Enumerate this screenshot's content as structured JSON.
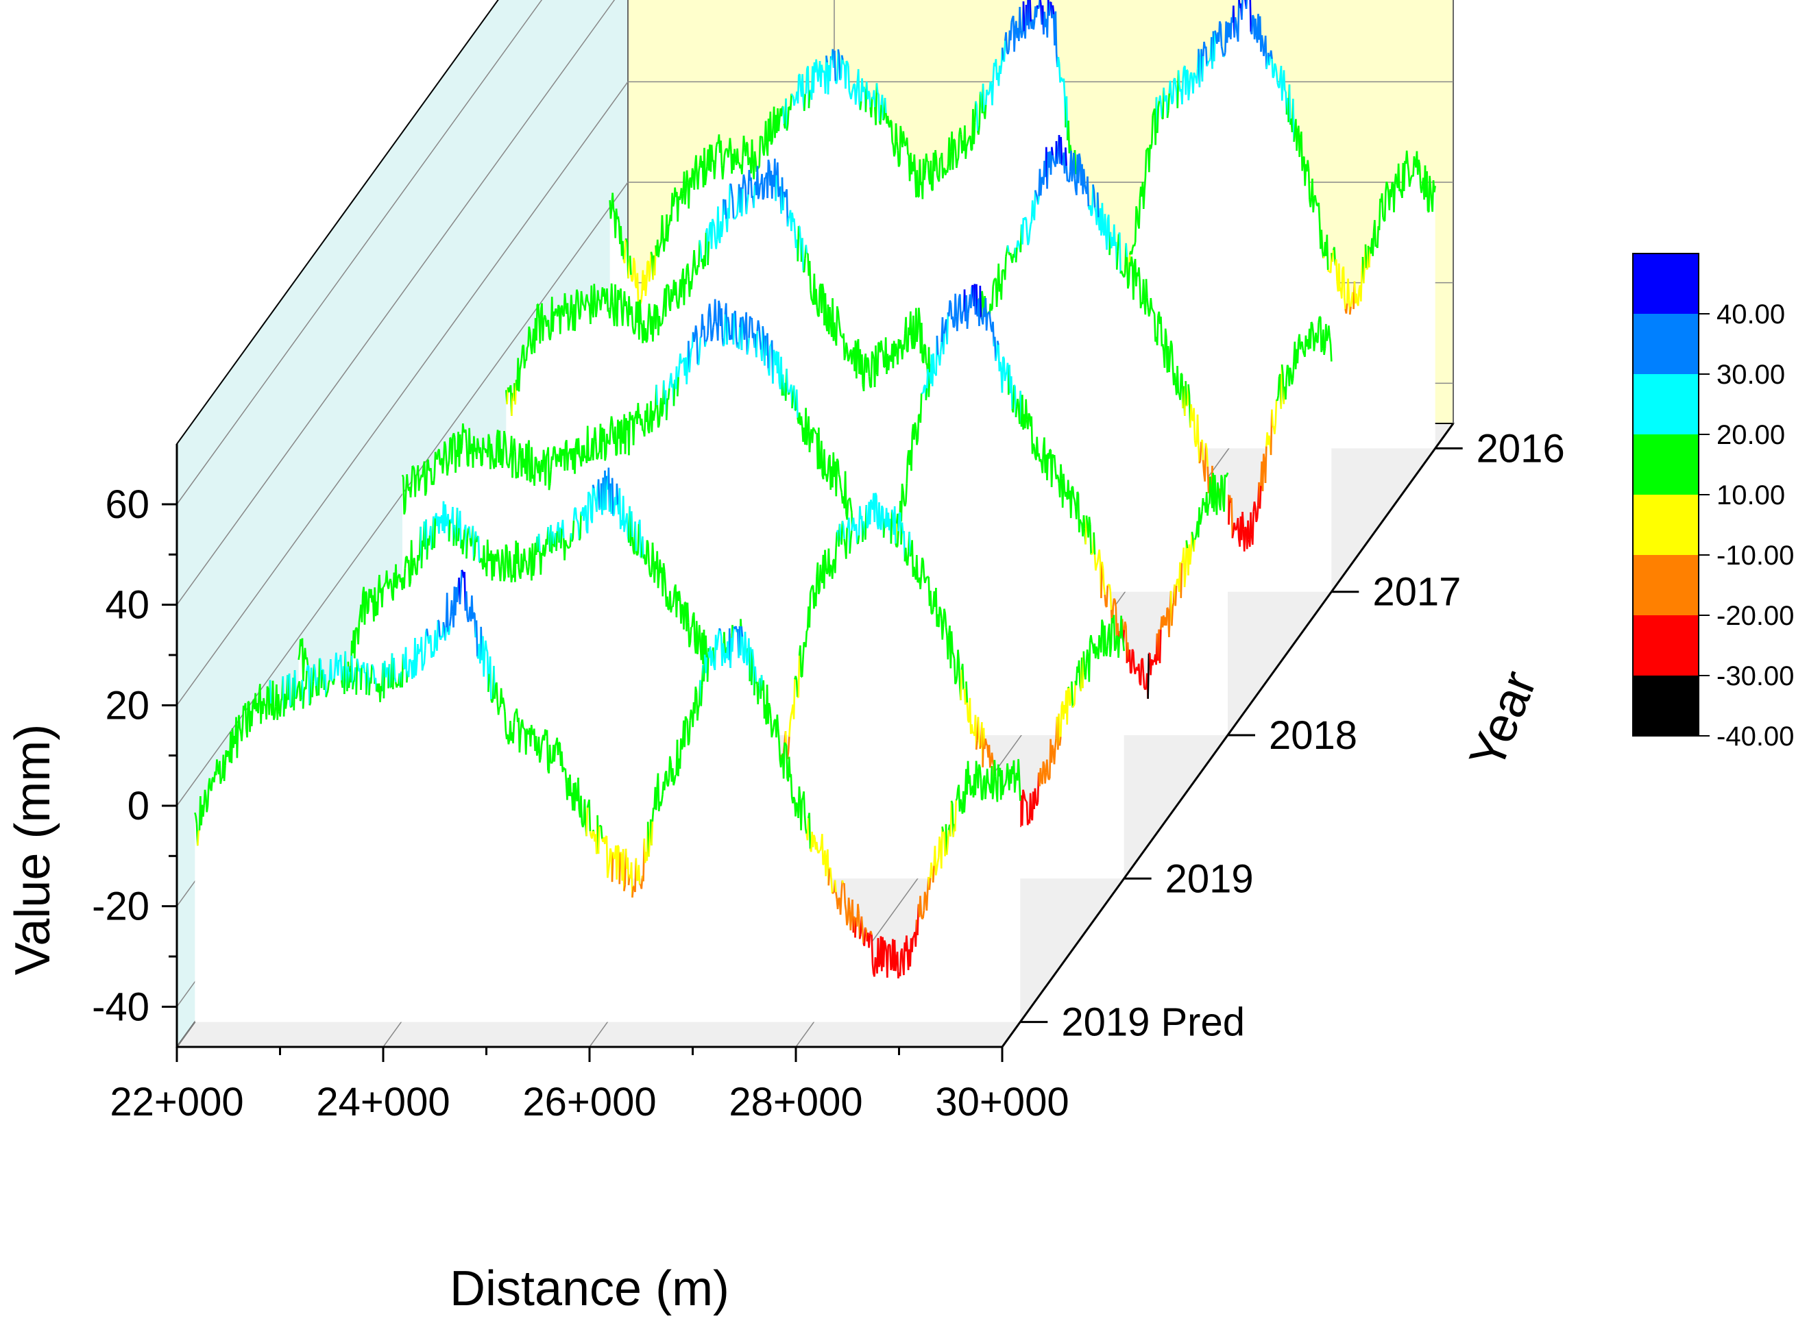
{
  "chart_data": {
    "type": "line",
    "subtype": "3d-waterfall",
    "xlabel": "Distance (m)",
    "ylabel": "Value (mm)",
    "zlabel": "Year",
    "x_ticks": [
      "22+000",
      "24+000",
      "26+000",
      "28+000",
      "30+000"
    ],
    "x_tick_values": [
      22000,
      24000,
      26000,
      28000,
      30000
    ],
    "xlim": [
      22000,
      30000
    ],
    "y_ticks": [
      "60",
      "40",
      "20",
      "0",
      "-20",
      "-40"
    ],
    "y_tick_values": [
      60,
      40,
      20,
      0,
      -20,
      -40
    ],
    "ylim": [
      -48,
      72
    ],
    "z_categories": [
      "2016",
      "2017",
      "2018",
      "2019",
      "2019 Pred"
    ],
    "grid": true,
    "colorbar": {
      "labels": [
        "40.00",
        "30.00",
        "20.00",
        "10.00",
        "-10.00",
        "-20.00",
        "-30.00",
        "-40.00"
      ],
      "bands": [
        {
          "min": 40,
          "color": "#0000ff"
        },
        {
          "min": 30,
          "color": "#0080ff"
        },
        {
          "min": 20,
          "color": "#00ffff"
        },
        {
          "min": -10,
          "color": "#00ff00"
        },
        {
          "min": -20,
          "color": "#ffff00"
        },
        {
          "min": -30,
          "color": "#ff8000"
        },
        {
          "min": -40,
          "color": "#ff0000"
        },
        {
          "min": -1000,
          "color": "#000000"
        }
      ]
    },
    "series": [
      {
        "name": "2016",
        "x": [
          22000,
          22300,
          22600,
          23000,
          23400,
          23800,
          24200,
          24600,
          25000,
          25500,
          26000,
          26300,
          26500,
          26700,
          27000,
          27300,
          27600,
          27800,
          28200,
          28600,
          28900,
          29200,
          29500,
          29800,
          30000
        ],
        "values": [
          0,
          -18,
          0,
          10,
          10,
          22,
          28,
          20,
          5,
          15,
          38,
          38,
          8,
          -20,
          -15,
          18,
          25,
          30,
          40,
          20,
          -5,
          -20,
          0,
          10,
          0
        ]
      },
      {
        "name": "2017",
        "x": [
          22000,
          22300,
          22600,
          23000,
          23400,
          23800,
          24200,
          24600,
          25000,
          25500,
          26000,
          26300,
          26500,
          26700,
          27000,
          27300,
          27600,
          27800,
          28200,
          28600,
          28900,
          29200,
          29500,
          29800,
          30000
        ],
        "values": [
          -12,
          5,
          8,
          10,
          5,
          15,
          30,
          35,
          12,
          -5,
          5,
          -22,
          5,
          10,
          22,
          40,
          34,
          25,
          10,
          -10,
          -30,
          -38,
          -8,
          5,
          0
        ]
      },
      {
        "name": "2018",
        "x": [
          22000,
          22300,
          22600,
          23000,
          23400,
          23800,
          24200,
          24600,
          25000,
          25500,
          26000,
          26300,
          26500,
          26700,
          27000,
          27300,
          27600,
          27800,
          28200,
          28600,
          28900,
          29200,
          29500,
          29800,
          30000
        ],
        "values": [
          0,
          5,
          10,
          8,
          5,
          10,
          12,
          20,
          35,
          30,
          10,
          0,
          -22,
          -18,
          15,
          35,
          38,
          25,
          8,
          -5,
          -25,
          -38,
          -20,
          0,
          0
        ]
      },
      {
        "name": "2019",
        "x": [
          22000,
          22300,
          22600,
          23000,
          23400,
          23800,
          24200,
          24600,
          25000,
          25500,
          26000,
          26300,
          26500,
          26700,
          27000,
          27300,
          27600,
          27800,
          28200,
          28600,
          28900,
          29200,
          29500,
          29800,
          30000
        ],
        "values": [
          0,
          -30,
          5,
          12,
          25,
          15,
          15,
          20,
          30,
          12,
          -5,
          0,
          -20,
          -25,
          10,
          20,
          25,
          22,
          5,
          -20,
          -38,
          -30,
          -10,
          0,
          0
        ]
      },
      {
        "name": "2019 Pred",
        "x": [
          22000,
          22300,
          22600,
          23000,
          23400,
          23800,
          24200,
          24600,
          25000,
          25500,
          26000,
          26300,
          26500,
          26700,
          27000,
          27300,
          27600,
          27800,
          28200,
          28600,
          28900,
          29200,
          29500,
          29800,
          30000
        ],
        "values": [
          -10,
          5,
          15,
          18,
          22,
          20,
          25,
          38,
          12,
          5,
          -15,
          -20,
          -2,
          5,
          25,
          28,
          12,
          -2,
          -20,
          -35,
          -35,
          -15,
          0,
          0,
          0
        ]
      }
    ]
  }
}
